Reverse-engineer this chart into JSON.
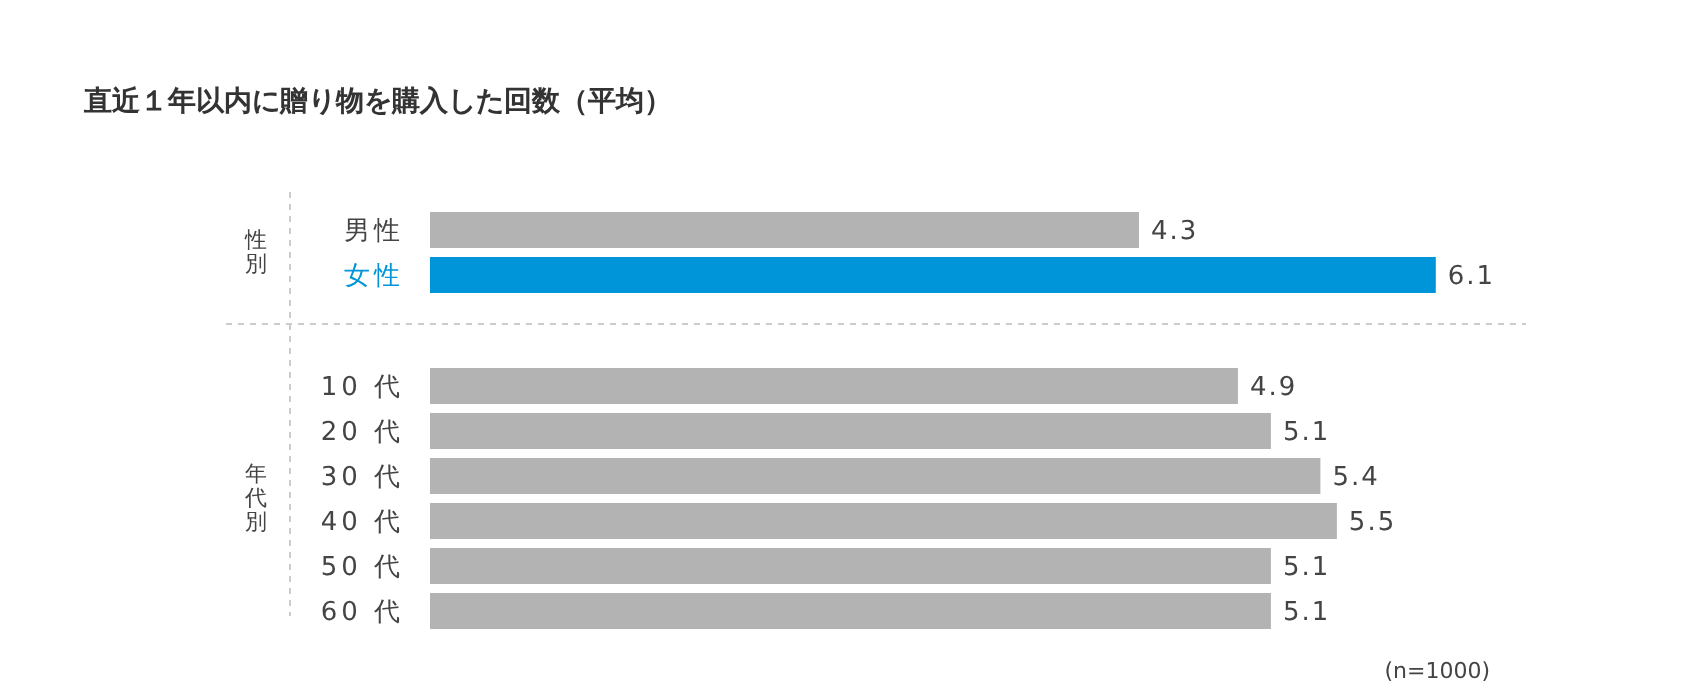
{
  "chart_data": [
    {
      "type": "bar",
      "orientation": "horizontal",
      "title": "直近１年以内に贈り物を購入した回数（平均）",
      "categories": [
        "男性",
        "女性"
      ],
      "values": [
        4.3,
        6.1
      ],
      "colors": [
        "#b3b3b3",
        "#0095d9"
      ],
      "data_labels": true,
      "annotations": [
        "性別"
      ]
    },
    {
      "type": "bar",
      "orientation": "horizontal",
      "categories": [
        "10 代",
        "20 代",
        "30 代",
        "40 代",
        "50 代",
        "60 代"
      ],
      "values": [
        4.9,
        5.1,
        5.4,
        5.5,
        5.1,
        5.1
      ],
      "colors": [
        "#b3b3b3",
        "#b3b3b3",
        "#b3b3b3",
        "#b3b3b3",
        "#b3b3b3",
        "#b3b3b3"
      ],
      "data_labels": true,
      "annotations": [
        "年代別",
        "(n=1000)"
      ]
    }
  ]
}
